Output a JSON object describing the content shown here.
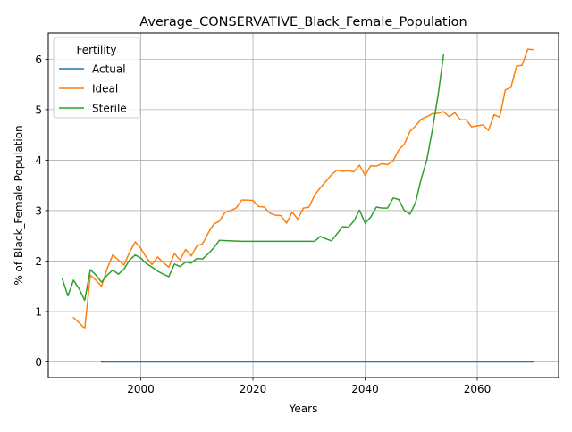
{
  "chart_data": {
    "type": "line",
    "title": "Average_CONSERVATIVE_Black_Female_Population",
    "xlabel": "Years",
    "ylabel": "% of Black_Female Population",
    "xlim": [
      1983.5,
      2074.5
    ],
    "ylim": [
      -0.31,
      6.52
    ],
    "x_ticks": [
      2000,
      2020,
      2040,
      2060
    ],
    "y_ticks": [
      0,
      1,
      2,
      3,
      4,
      5,
      6
    ],
    "grid": true,
    "legend": {
      "title": "Fertility",
      "placement": "top-left"
    },
    "series": [
      {
        "name": "Actual",
        "color": "#1f77b4",
        "points": [
          [
            1993,
            0
          ],
          [
            2070,
            0
          ]
        ]
      },
      {
        "name": "Ideal",
        "color": "#ff7f0e",
        "points": [
          [
            1988,
            0.88
          ],
          [
            1989,
            0.78
          ],
          [
            1990,
            0.66
          ],
          [
            1991,
            1.72
          ],
          [
            1992,
            1.62
          ],
          [
            1993,
            1.5
          ],
          [
            1994,
            1.85
          ],
          [
            1995,
            2.12
          ],
          [
            1996,
            2.02
          ],
          [
            1997,
            1.92
          ],
          [
            1998,
            2.17
          ],
          [
            1999,
            2.38
          ],
          [
            2000,
            2.25
          ],
          [
            2001,
            2.07
          ],
          [
            2002,
            1.93
          ],
          [
            2003,
            2.08
          ],
          [
            2004,
            1.97
          ],
          [
            2005,
            1.88
          ],
          [
            2006,
            2.15
          ],
          [
            2007,
            2.02
          ],
          [
            2008,
            2.23
          ],
          [
            2009,
            2.1
          ],
          [
            2010,
            2.3
          ],
          [
            2011,
            2.34
          ],
          [
            2012,
            2.55
          ],
          [
            2013,
            2.73
          ],
          [
            2014,
            2.79
          ],
          [
            2015,
            2.96
          ],
          [
            2016,
            3.0
          ],
          [
            2017,
            3.05
          ],
          [
            2018,
            3.21
          ],
          [
            2019,
            3.21
          ],
          [
            2020,
            3.2
          ],
          [
            2021,
            3.08
          ],
          [
            2022,
            3.07
          ],
          [
            2023,
            2.95
          ],
          [
            2024,
            2.91
          ],
          [
            2025,
            2.9
          ],
          [
            2026,
            2.75
          ],
          [
            2027,
            2.97
          ],
          [
            2028,
            2.83
          ],
          [
            2029,
            3.05
          ],
          [
            2030,
            3.07
          ],
          [
            2031,
            3.31
          ],
          [
            2032,
            3.45
          ],
          [
            2033,
            3.58
          ],
          [
            2034,
            3.71
          ],
          [
            2035,
            3.8
          ],
          [
            2036,
            3.78
          ],
          [
            2037,
            3.79
          ],
          [
            2038,
            3.77
          ],
          [
            2039,
            3.9
          ],
          [
            2040,
            3.7
          ],
          [
            2041,
            3.89
          ],
          [
            2042,
            3.88
          ],
          [
            2043,
            3.93
          ],
          [
            2044,
            3.91
          ],
          [
            2045,
            3.99
          ],
          [
            2046,
            4.2
          ],
          [
            2047,
            4.32
          ],
          [
            2048,
            4.57
          ],
          [
            2049,
            4.68
          ],
          [
            2050,
            4.81
          ],
          [
            2051,
            4.86
          ],
          [
            2052,
            4.92
          ],
          [
            2053,
            4.93
          ],
          [
            2054,
            4.96
          ],
          [
            2055,
            4.86
          ],
          [
            2056,
            4.94
          ],
          [
            2057,
            4.8
          ],
          [
            2058,
            4.8
          ],
          [
            2059,
            4.66
          ],
          [
            2060,
            4.68
          ],
          [
            2061,
            4.7
          ],
          [
            2062,
            4.59
          ],
          [
            2063,
            4.9
          ],
          [
            2064,
            4.85
          ],
          [
            2065,
            5.39
          ],
          [
            2066,
            5.44
          ],
          [
            2067,
            5.86
          ],
          [
            2068,
            5.88
          ],
          [
            2069,
            6.2
          ],
          [
            2070,
            6.19
          ]
        ]
      },
      {
        "name": "Sterile",
        "color": "#2ca02c",
        "points": [
          [
            1986,
            1.65
          ],
          [
            1987,
            1.31
          ],
          [
            1988,
            1.62
          ],
          [
            1989,
            1.45
          ],
          [
            1990,
            1.22
          ],
          [
            1991,
            1.83
          ],
          [
            1992,
            1.72
          ],
          [
            1993,
            1.58
          ],
          [
            1994,
            1.72
          ],
          [
            1995,
            1.82
          ],
          [
            1996,
            1.74
          ],
          [
            1997,
            1.84
          ],
          [
            1998,
            2.02
          ],
          [
            1999,
            2.12
          ],
          [
            2000,
            2.06
          ],
          [
            2001,
            1.95
          ],
          [
            2002,
            1.88
          ],
          [
            2003,
            1.8
          ],
          [
            2004,
            1.74
          ],
          [
            2005,
            1.69
          ],
          [
            2006,
            1.94
          ],
          [
            2007,
            1.89
          ],
          [
            2008,
            1.98
          ],
          [
            2009,
            1.96
          ],
          [
            2010,
            2.05
          ],
          [
            2011,
            2.04
          ],
          [
            2012,
            2.14
          ],
          [
            2013,
            2.26
          ],
          [
            2014,
            2.41
          ],
          [
            2016,
            2.4
          ],
          [
            2018,
            2.39
          ],
          [
            2022,
            2.39
          ],
          [
            2026,
            2.39
          ],
          [
            2030,
            2.39
          ],
          [
            2031,
            2.39
          ],
          [
            2032,
            2.49
          ],
          [
            2033,
            2.44
          ],
          [
            2034,
            2.4
          ],
          [
            2035,
            2.54
          ],
          [
            2036,
            2.68
          ],
          [
            2037,
            2.67
          ],
          [
            2038,
            2.79
          ],
          [
            2039,
            3.01
          ],
          [
            2040,
            2.75
          ],
          [
            2041,
            2.87
          ],
          [
            2042,
            3.07
          ],
          [
            2043,
            3.05
          ],
          [
            2044,
            3.05
          ],
          [
            2045,
            3.25
          ],
          [
            2046,
            3.22
          ],
          [
            2047,
            3.0
          ],
          [
            2048,
            2.93
          ],
          [
            2049,
            3.16
          ],
          [
            2050,
            3.63
          ],
          [
            2051,
            4.0
          ],
          [
            2052,
            4.6
          ],
          [
            2053,
            5.28
          ],
          [
            2054,
            6.09
          ]
        ]
      }
    ]
  }
}
